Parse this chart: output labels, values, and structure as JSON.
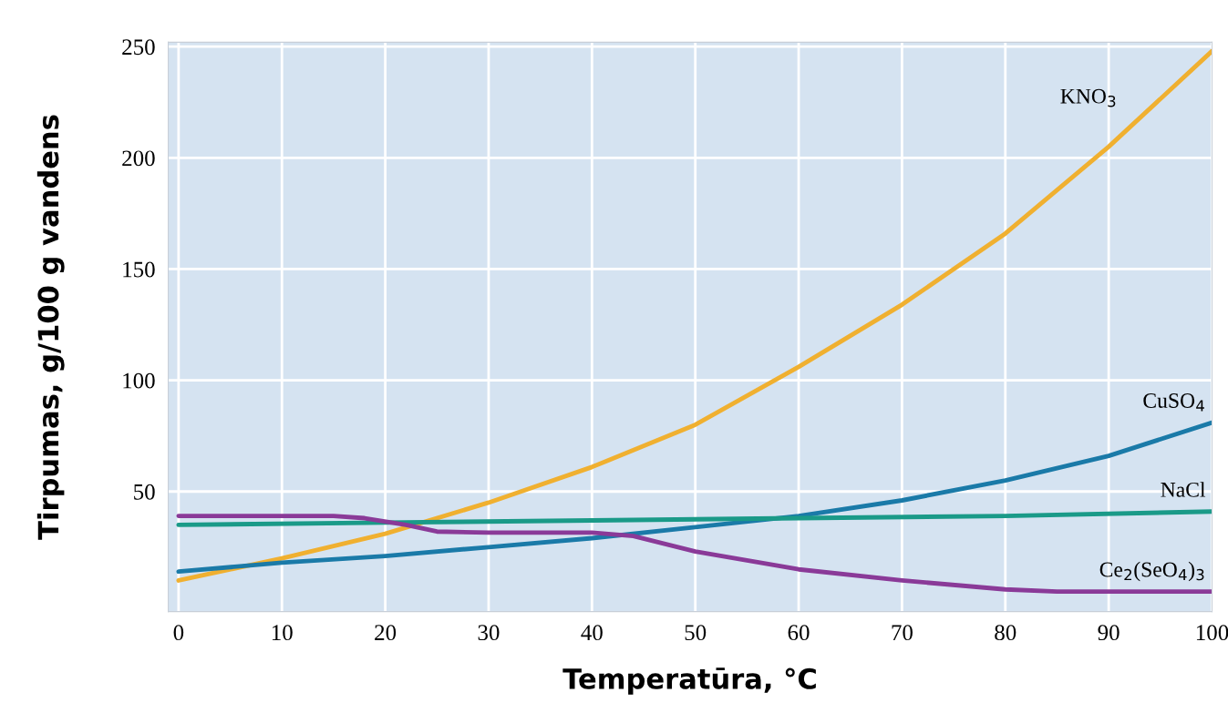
{
  "chart_data": {
    "type": "line",
    "xlabel": "Temperatūra, °C",
    "ylabel": "Tirpumas, g/100 g vandens",
    "xlim": [
      -1,
      100
    ],
    "ylim": [
      -4,
      252
    ],
    "xticks": [
      0,
      10,
      20,
      30,
      40,
      50,
      60,
      70,
      80,
      90,
      100
    ],
    "yticks": [
      50,
      100,
      150,
      200,
      250
    ],
    "grid": true,
    "marker": "none",
    "line_style": "solid",
    "series": [
      {
        "name": "KNO$_{3}$",
        "color": "#f0b030",
        "x": [
          0,
          10,
          20,
          30,
          40,
          50,
          60,
          70,
          80,
          90,
          100
        ],
        "values": [
          10,
          20,
          31,
          45,
          61,
          80,
          106,
          134,
          166,
          205,
          248
        ]
      },
      {
        "name": "CuSO$_{4}$",
        "color": "#1a7aa8",
        "x": [
          0,
          10,
          20,
          30,
          40,
          50,
          60,
          70,
          80,
          90,
          100
        ],
        "values": [
          14,
          18,
          21,
          25,
          29,
          34,
          39,
          46,
          55,
          66,
          81
        ]
      },
      {
        "name": "NaCl",
        "color": "#1a9a88",
        "x": [
          0,
          20,
          40,
          60,
          80,
          100
        ],
        "values": [
          35,
          36,
          37,
          38,
          39,
          41
        ]
      },
      {
        "name": "Ce$_{2}$(SeO$_{4}$)$_{3}$",
        "color": "#8a3a98",
        "x": [
          0,
          15,
          18,
          22,
          25,
          30,
          40,
          44,
          50,
          60,
          70,
          80,
          85,
          100
        ],
        "values": [
          39,
          39,
          38,
          35,
          32,
          31.5,
          31.5,
          30,
          23,
          15,
          10,
          6,
          5,
          5
        ]
      }
    ]
  }
}
